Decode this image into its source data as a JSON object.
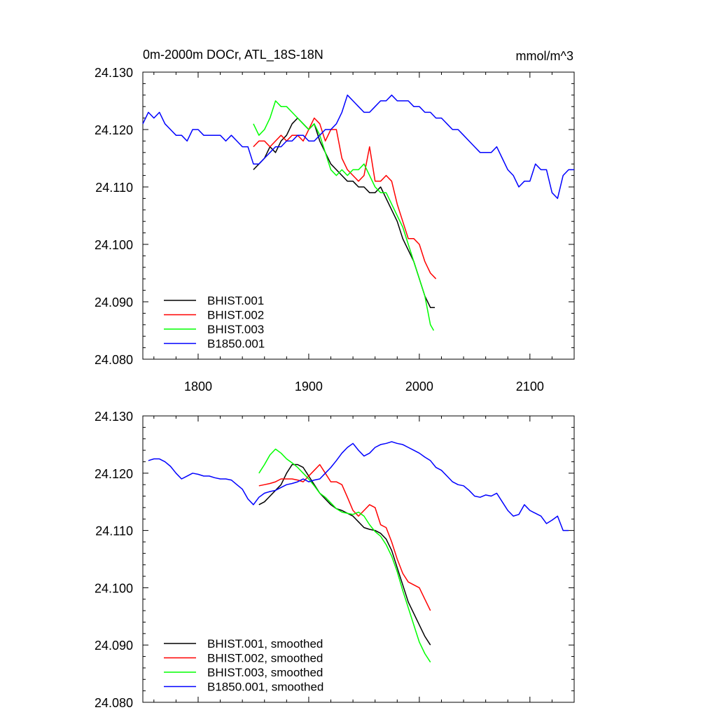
{
  "chart_data": [
    {
      "type": "line",
      "title": "0m-2000m DOCr, ATL_18S-18N",
      "units": "mmol/m^3",
      "xlabel": "",
      "ylabel": "",
      "xlim": [
        1750,
        2140
      ],
      "ylim": [
        24.08,
        24.13
      ],
      "xticks": [
        1800,
        1900,
        2000,
        2100
      ],
      "xtick_labels": [
        "1800",
        "1900",
        "2000",
        "2100"
      ],
      "yticks": [
        24.08,
        24.09,
        24.1,
        24.11,
        24.12,
        24.13
      ],
      "ytick_labels": [
        "24.080",
        "24.090",
        "24.100",
        "24.110",
        "24.120",
        "24.130"
      ],
      "legend_position": "bottom-left",
      "series": [
        {
          "name": "BHIST.001",
          "color": "#000000",
          "x": [
            1850,
            1855,
            1860,
            1865,
            1870,
            1875,
            1880,
            1885,
            1890,
            1895,
            1900,
            1905,
            1910,
            1915,
            1920,
            1925,
            1930,
            1935,
            1940,
            1945,
            1950,
            1955,
            1960,
            1965,
            1970,
            1975,
            1980,
            1985,
            1990,
            1995,
            2000,
            2005,
            2010,
            2014
          ],
          "y": [
            24.113,
            24.114,
            24.115,
            24.117,
            24.116,
            24.118,
            24.119,
            24.121,
            24.122,
            24.121,
            24.12,
            24.121,
            24.118,
            24.116,
            24.114,
            24.113,
            24.112,
            24.111,
            24.111,
            24.11,
            24.11,
            24.109,
            24.109,
            24.11,
            24.108,
            24.106,
            24.104,
            24.101,
            24.099,
            24.097,
            24.094,
            24.091,
            24.089,
            24.089
          ]
        },
        {
          "name": "BHIST.002",
          "color": "#ff0000",
          "x": [
            1850,
            1855,
            1860,
            1865,
            1870,
            1875,
            1880,
            1885,
            1890,
            1895,
            1900,
            1905,
            1910,
            1915,
            1920,
            1925,
            1930,
            1935,
            1940,
            1945,
            1950,
            1955,
            1960,
            1965,
            1970,
            1975,
            1980,
            1985,
            1990,
            1995,
            2000,
            2005,
            2010,
            2015
          ],
          "y": [
            24.117,
            24.118,
            24.118,
            24.117,
            24.118,
            24.119,
            24.118,
            24.119,
            24.119,
            24.118,
            24.12,
            24.122,
            24.121,
            24.118,
            24.12,
            24.12,
            24.115,
            24.113,
            24.112,
            24.111,
            24.112,
            24.117,
            24.111,
            24.111,
            24.112,
            24.111,
            24.107,
            24.104,
            24.101,
            24.101,
            24.1,
            24.097,
            24.095,
            24.094
          ]
        },
        {
          "name": "BHIST.003",
          "color": "#00ff00",
          "x": [
            1850,
            1855,
            1860,
            1865,
            1870,
            1875,
            1880,
            1885,
            1890,
            1895,
            1900,
            1905,
            1910,
            1915,
            1920,
            1925,
            1930,
            1935,
            1940,
            1945,
            1950,
            1955,
            1960,
            1965,
            1970,
            1975,
            1980,
            1985,
            1990,
            1995,
            2000,
            2005,
            2010,
            2013
          ],
          "y": [
            24.121,
            24.119,
            24.12,
            24.122,
            24.125,
            24.124,
            24.124,
            24.123,
            24.122,
            24.121,
            24.12,
            24.121,
            24.119,
            24.116,
            24.113,
            24.112,
            24.113,
            24.112,
            24.113,
            24.113,
            24.114,
            24.112,
            24.11,
            24.109,
            24.109,
            24.107,
            24.105,
            24.103,
            24.1,
            24.097,
            24.094,
            24.091,
            24.086,
            24.085
          ]
        },
        {
          "name": "B1850.001",
          "color": "#0000ff",
          "x": [
            1750,
            1755,
            1760,
            1765,
            1770,
            1775,
            1780,
            1785,
            1790,
            1795,
            1800,
            1805,
            1810,
            1815,
            1820,
            1825,
            1830,
            1835,
            1840,
            1845,
            1850,
            1855,
            1860,
            1865,
            1870,
            1875,
            1880,
            1885,
            1890,
            1895,
            1900,
            1905,
            1910,
            1915,
            1920,
            1925,
            1930,
            1935,
            1940,
            1945,
            1950,
            1955,
            1960,
            1965,
            1970,
            1975,
            1980,
            1985,
            1990,
            1995,
            2000,
            2005,
            2010,
            2015,
            2020,
            2025,
            2030,
            2035,
            2040,
            2045,
            2050,
            2055,
            2060,
            2065,
            2070,
            2075,
            2080,
            2085,
            2090,
            2095,
            2100,
            2105,
            2110,
            2115,
            2120,
            2125,
            2130,
            2135,
            2140
          ],
          "y": [
            24.121,
            24.123,
            24.122,
            24.123,
            24.121,
            24.12,
            24.119,
            24.119,
            24.118,
            24.12,
            24.12,
            24.119,
            24.119,
            24.119,
            24.119,
            24.118,
            24.119,
            24.118,
            24.117,
            24.117,
            24.114,
            24.114,
            24.115,
            24.116,
            24.117,
            24.117,
            24.118,
            24.118,
            24.119,
            24.119,
            24.118,
            24.118,
            24.119,
            24.12,
            24.12,
            24.121,
            24.123,
            24.126,
            24.125,
            24.124,
            24.123,
            24.123,
            24.124,
            24.125,
            24.125,
            24.126,
            24.125,
            24.125,
            24.125,
            24.124,
            24.124,
            24.123,
            24.123,
            24.122,
            24.122,
            24.121,
            24.12,
            24.12,
            24.119,
            24.118,
            24.117,
            24.116,
            24.116,
            24.116,
            24.117,
            24.115,
            24.113,
            24.112,
            24.11,
            24.111,
            24.111,
            24.114,
            24.113,
            24.113,
            24.109,
            24.108,
            24.112,
            24.113,
            24.113
          ]
        }
      ]
    },
    {
      "type": "line",
      "title": "",
      "xlabel": "",
      "ylabel": "",
      "xlim": [
        1750,
        2140
      ],
      "ylim": [
        24.08,
        24.13
      ],
      "xticks": [
        1800,
        1900,
        2000,
        2100
      ],
      "xtick_labels": [],
      "yticks": [
        24.08,
        24.09,
        24.1,
        24.11,
        24.12,
        24.13
      ],
      "ytick_labels": [
        "24.080",
        "24.090",
        "24.100",
        "24.110",
        "24.120",
        "24.130"
      ],
      "legend_position": "bottom-left",
      "series": [
        {
          "name": "BHIST.001, smoothed",
          "color": "#000000",
          "x": [
            1855,
            1860,
            1865,
            1870,
            1875,
            1880,
            1885,
            1890,
            1895,
            1900,
            1905,
            1910,
            1915,
            1920,
            1925,
            1930,
            1935,
            1940,
            1945,
            1950,
            1955,
            1960,
            1965,
            1970,
            1975,
            1980,
            1985,
            1990,
            1995,
            2000,
            2005,
            2010
          ],
          "y": [
            24.1145,
            24.115,
            24.116,
            24.117,
            24.118,
            24.12,
            24.1215,
            24.1215,
            24.121,
            24.1195,
            24.118,
            24.1165,
            24.1155,
            24.1145,
            24.1138,
            24.1135,
            24.113,
            24.1125,
            24.1115,
            24.1105,
            24.1102,
            24.11,
            24.1095,
            24.1085,
            24.1065,
            24.1035,
            24.1005,
            24.0975,
            24.0955,
            24.0935,
            24.0915,
            24.09
          ]
        },
        {
          "name": "BHIST.002, smoothed",
          "color": "#ff0000",
          "x": [
            1855,
            1860,
            1865,
            1870,
            1875,
            1880,
            1885,
            1890,
            1895,
            1900,
            1905,
            1910,
            1915,
            1920,
            1925,
            1930,
            1935,
            1940,
            1945,
            1950,
            1955,
            1960,
            1965,
            1970,
            1975,
            1980,
            1985,
            1990,
            1995,
            2000,
            2005,
            2010
          ],
          "y": [
            24.1178,
            24.118,
            24.1182,
            24.1185,
            24.119,
            24.119,
            24.119,
            24.1188,
            24.1185,
            24.1195,
            24.1205,
            24.1215,
            24.12,
            24.1185,
            24.1185,
            24.118,
            24.1158,
            24.1135,
            24.1125,
            24.1135,
            24.1145,
            24.114,
            24.111,
            24.1105,
            24.108,
            24.105,
            24.1025,
            24.101,
            24.1005,
            24.1,
            24.098,
            24.096
          ]
        },
        {
          "name": "BHIST.003, smoothed",
          "color": "#00ff00",
          "x": [
            1855,
            1860,
            1865,
            1870,
            1875,
            1880,
            1885,
            1890,
            1895,
            1900,
            1905,
            1910,
            1915,
            1920,
            1925,
            1930,
            1935,
            1940,
            1945,
            1950,
            1955,
            1960,
            1965,
            1970,
            1975,
            1980,
            1985,
            1990,
            1995,
            2000,
            2005,
            2010
          ],
          "y": [
            24.12,
            24.1215,
            24.1232,
            24.1242,
            24.1235,
            24.1225,
            24.1218,
            24.121,
            24.12,
            24.119,
            24.1178,
            24.1165,
            24.1158,
            24.1148,
            24.1138,
            24.1132,
            24.113,
            24.1128,
            24.1132,
            24.1125,
            24.111,
            24.1098,
            24.109,
            24.1075,
            24.1055,
            24.1028,
            24.0995,
            24.0965,
            24.0935,
            24.0905,
            24.0885,
            24.087
          ]
        },
        {
          "name": "B1850.001, smoothed",
          "color": "#0000ff",
          "x": [
            1755,
            1760,
            1765,
            1770,
            1775,
            1780,
            1785,
            1790,
            1795,
            1800,
            1805,
            1810,
            1815,
            1820,
            1825,
            1830,
            1835,
            1840,
            1845,
            1850,
            1855,
            1860,
            1865,
            1870,
            1875,
            1880,
            1885,
            1890,
            1895,
            1900,
            1905,
            1910,
            1915,
            1920,
            1925,
            1930,
            1935,
            1940,
            1945,
            1950,
            1955,
            1960,
            1965,
            1970,
            1975,
            1980,
            1985,
            1990,
            1995,
            2000,
            2005,
            2010,
            2015,
            2020,
            2025,
            2030,
            2035,
            2040,
            2045,
            2050,
            2055,
            2060,
            2065,
            2070,
            2075,
            2080,
            2085,
            2090,
            2095,
            2100,
            2105,
            2110,
            2115,
            2120,
            2125,
            2130,
            2135
          ],
          "y": [
            24.1222,
            24.1225,
            24.1225,
            24.122,
            24.1212,
            24.12,
            24.119,
            24.1195,
            24.12,
            24.1198,
            24.1195,
            24.1195,
            24.1192,
            24.119,
            24.119,
            24.1188,
            24.118,
            24.1172,
            24.1155,
            24.1145,
            24.1158,
            24.1165,
            24.1168,
            24.117,
            24.1175,
            24.118,
            24.1182,
            24.1185,
            24.119,
            24.1185,
            24.1188,
            24.119,
            24.12,
            24.121,
            24.1222,
            24.1235,
            24.1245,
            24.1252,
            24.124,
            24.123,
            24.1235,
            24.1245,
            24.125,
            24.1252,
            24.1255,
            24.1252,
            24.125,
            24.1245,
            24.124,
            24.1235,
            24.1228,
            24.1222,
            24.121,
            24.1205,
            24.1195,
            24.1185,
            24.118,
            24.1178,
            24.117,
            24.116,
            24.1158,
            24.1162,
            24.116,
            24.1165,
            24.115,
            24.1135,
            24.1125,
            24.1128,
            24.1145,
            24.1135,
            24.113,
            24.1125,
            24.1112,
            24.1118,
            24.1125,
            24.11,
            24.11
          ]
        }
      ]
    }
  ]
}
